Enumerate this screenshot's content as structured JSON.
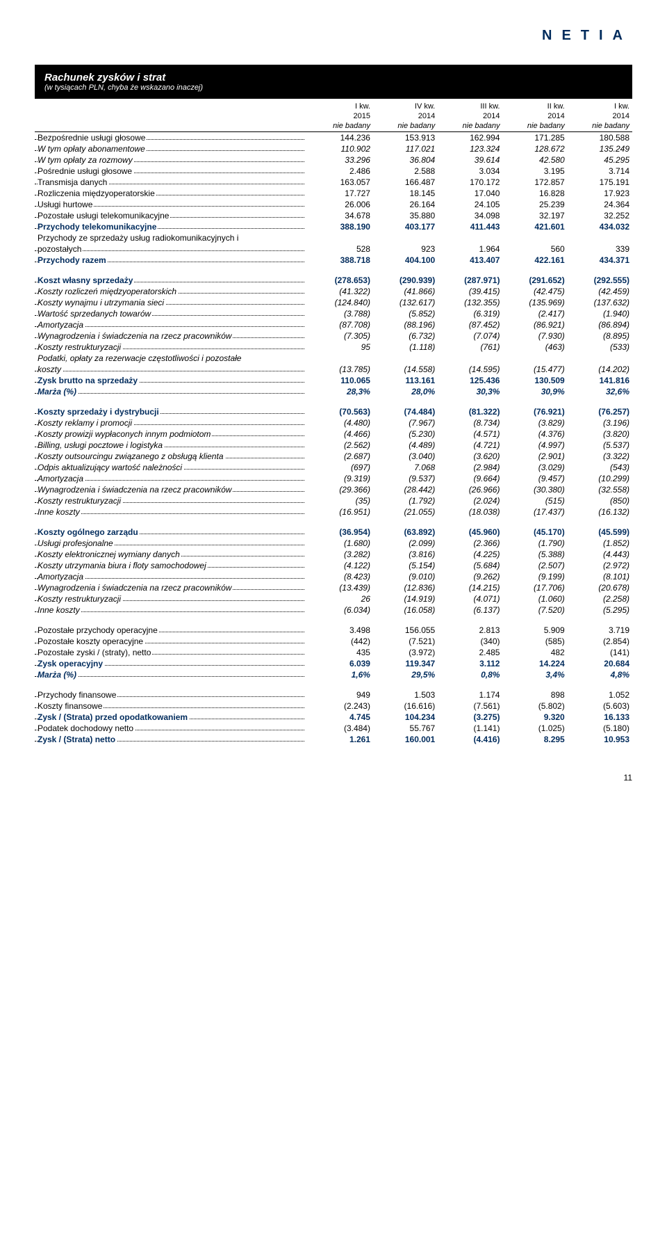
{
  "brand": "NETIA",
  "title": "Rachunek zysków i strat",
  "subtitle": "(w tysiącach PLN, chyba że wskazano inaczej)",
  "columns_l1": [
    "I kw.",
    "IV kw.",
    "III kw.",
    "II kw.",
    "I kw."
  ],
  "columns_l2": [
    "2015",
    "2014",
    "2014",
    "2014",
    "2014"
  ],
  "columns_l3": [
    "nie badany",
    "nie badany",
    "nie badany",
    "nie badany",
    "nie badany"
  ],
  "page_number": "11",
  "rows": [
    {
      "lbl": "Bezpośrednie usługi głosowe",
      "v": [
        "144.236",
        "153.913",
        "162.994",
        "171.285",
        "180.588"
      ],
      "cls": "normal",
      "dots": true
    },
    {
      "lbl": "  W tym opłaty abonamentowe",
      "v": [
        "110.902",
        "117.021",
        "123.324",
        "128.672",
        "135.249"
      ],
      "cls": "ital",
      "dots": true
    },
    {
      "lbl": "  W tym opłaty za rozmowy",
      "v": [
        "33.296",
        "36.804",
        "39.614",
        "42.580",
        "45.295"
      ],
      "cls": "ital",
      "dots": true
    },
    {
      "lbl": "Pośrednie usługi głosowe",
      "v": [
        "2.486",
        "2.588",
        "3.034",
        "3.195",
        "3.714"
      ],
      "cls": "normal",
      "dots": true
    },
    {
      "lbl": "Transmisja danych",
      "v": [
        "163.057",
        "166.487",
        "170.172",
        "172.857",
        "175.191"
      ],
      "cls": "normal",
      "dots": true
    },
    {
      "lbl": "Rozliczenia międzyoperatorskie",
      "v": [
        "17.727",
        "18.145",
        "17.040",
        "16.828",
        "17.923"
      ],
      "cls": "normal",
      "dots": true
    },
    {
      "lbl": "Usługi hurtowe",
      "v": [
        "26.006",
        "26.164",
        "24.105",
        "25.239",
        "24.364"
      ],
      "cls": "normal",
      "dots": true
    },
    {
      "lbl": "Pozostałe usługi telekomunikacyjne",
      "v": [
        "34.678",
        "35.880",
        "34.098",
        "32.197",
        "32.252"
      ],
      "cls": "normal",
      "dots": true
    },
    {
      "lbl": "Przychody telekomunikacyjne",
      "v": [
        "388.190",
        "403.177",
        "411.443",
        "421.601",
        "434.032"
      ],
      "cls": "boldblue",
      "dots": true
    },
    {
      "lbl": "Przychody ze sprzedaży usług radiokomunikacyjnych i",
      "v": [
        "",
        "",
        "",
        "",
        ""
      ],
      "cls": "normal",
      "dots": false
    },
    {
      "lbl": "pozostałych",
      "v": [
        "528",
        "923",
        "1.964",
        "560",
        "339"
      ],
      "cls": "normal",
      "dots": true
    },
    {
      "lbl": "Przychody razem",
      "v": [
        "388.718",
        "404.100",
        "413.407",
        "422.161",
        "434.371"
      ],
      "cls": "boldblue",
      "dots": true
    },
    {
      "lbl": "Koszt własny sprzedaży",
      "v": [
        "(278.653)",
        "(290.939)",
        "(287.971)",
        "(291.652)",
        "(292.555)"
      ],
      "cls": "boldblue",
      "dots": true,
      "gap": true
    },
    {
      "lbl": "Koszty rozliczeń międzyoperatorskich",
      "v": [
        "(41.322)",
        "(41.866)",
        "(39.415)",
        "(42.475)",
        "(42.459)"
      ],
      "cls": "ital",
      "dots": true
    },
    {
      "lbl": "Koszty wynajmu i utrzymania sieci",
      "v": [
        "(124.840)",
        "(132.617)",
        "(132.355)",
        "(135.969)",
        "(137.632)"
      ],
      "cls": "ital",
      "dots": true
    },
    {
      "lbl": "Wartość sprzedanych towarów",
      "v": [
        "(3.788)",
        "(5.852)",
        "(6.319)",
        "(2.417)",
        "(1.940)"
      ],
      "cls": "ital",
      "dots": true
    },
    {
      "lbl": "Amortyzacja",
      "v": [
        "(87.708)",
        "(88.196)",
        "(87.452)",
        "(86.921)",
        "(86.894)"
      ],
      "cls": "ital",
      "dots": true
    },
    {
      "lbl": "Wynagrodzenia i świadczenia na rzecz pracowników",
      "v": [
        "(7.305)",
        "(6.732)",
        "(7.074)",
        "(7.930)",
        "(8.895)"
      ],
      "cls": "ital",
      "dots": true
    },
    {
      "lbl": "Koszty restrukturyzacji",
      "v": [
        "95",
        "(1.118)",
        "(761)",
        "(463)",
        "(533)"
      ],
      "cls": "ital",
      "dots": true
    },
    {
      "lbl": "Podatki, opłaty za rezerwacje częstotliwości i pozostałe",
      "v": [
        "",
        "",
        "",
        "",
        ""
      ],
      "cls": "ital",
      "dots": false
    },
    {
      "lbl": "koszty",
      "v": [
        "(13.785)",
        "(14.558)",
        "(14.595)",
        "(15.477)",
        "(14.202)"
      ],
      "cls": "ital",
      "dots": true
    },
    {
      "lbl": "Zysk brutto na sprzedaży",
      "v": [
        "110.065",
        "113.161",
        "125.436",
        "130.509",
        "141.816"
      ],
      "cls": "boldblue",
      "dots": true
    },
    {
      "lbl": "Marża (%)",
      "v": [
        "28,3%",
        "28,0%",
        "30,3%",
        "30,9%",
        "32,6%"
      ],
      "cls": "boldblueital",
      "dots": true
    },
    {
      "lbl": "Koszty sprzedaży i dystrybucji",
      "v": [
        "(70.563)",
        "(74.484)",
        "(81.322)",
        "(76.921)",
        "(76.257)"
      ],
      "cls": "boldblue",
      "dots": true,
      "gap": true
    },
    {
      "lbl": "Koszty reklamy i promocji",
      "v": [
        "(4.480)",
        "(7.967)",
        "(8.734)",
        "(3.829)",
        "(3.196)"
      ],
      "cls": "ital",
      "dots": true
    },
    {
      "lbl": "Koszty prowizji wypłaconych innym podmiotom",
      "v": [
        "(4.466)",
        "(5.230)",
        "(4.571)",
        "(4.376)",
        "(3.820)"
      ],
      "cls": "ital",
      "dots": true
    },
    {
      "lbl": "Billing, usługi pocztowe i logistyka",
      "v": [
        "(2.562)",
        "(4.489)",
        "(4.721)",
        "(4.997)",
        "(5.537)"
      ],
      "cls": "ital",
      "dots": true
    },
    {
      "lbl": "Koszty outsourcingu związanego z obsługą klienta",
      "v": [
        "(2.687)",
        "(3.040)",
        "(3.620)",
        "(2.901)",
        "(3.322)"
      ],
      "cls": "ital",
      "dots": true
    },
    {
      "lbl": "Odpis aktualizujący wartość należności",
      "v": [
        "(697)",
        "7.068",
        "(2.984)",
        "(3.029)",
        "(543)"
      ],
      "cls": "ital",
      "dots": true
    },
    {
      "lbl": "Amortyzacja",
      "v": [
        "(9.319)",
        "(9.537)",
        "(9.664)",
        "(9.457)",
        "(10.299)"
      ],
      "cls": "ital",
      "dots": true
    },
    {
      "lbl": "Wynagrodzenia i świadczenia na rzecz pracowników",
      "v": [
        "(29.366)",
        "(28.442)",
        "(26.966)",
        "(30.380)",
        "(32.558)"
      ],
      "cls": "ital",
      "dots": true
    },
    {
      "lbl": "Koszty restrukturyzacji",
      "v": [
        "(35)",
        "(1.792)",
        "(2.024)",
        "(515)",
        "(850)"
      ],
      "cls": "ital",
      "dots": true
    },
    {
      "lbl": "Inne koszty",
      "v": [
        "(16.951)",
        "(21.055)",
        "(18.038)",
        "(17.437)",
        "(16.132)"
      ],
      "cls": "ital",
      "dots": true
    },
    {
      "lbl": "Koszty ogólnego zarządu",
      "v": [
        "(36.954)",
        "(63.892)",
        "(45.960)",
        "(45.170)",
        "(45.599)"
      ],
      "cls": "boldblue",
      "dots": true,
      "gap": true
    },
    {
      "lbl": "Usługi profesjonalne",
      "v": [
        "(1.680)",
        "(2.099)",
        "(2.366)",
        "(1.790)",
        "(1.852)"
      ],
      "cls": "ital",
      "dots": true
    },
    {
      "lbl": "Koszty elektronicznej wymiany danych",
      "v": [
        "(3.282)",
        "(3.816)",
        "(4.225)",
        "(5.388)",
        "(4.443)"
      ],
      "cls": "ital",
      "dots": true
    },
    {
      "lbl": "Koszty utrzymania biura i floty samochodowej",
      "v": [
        "(4.122)",
        "(5.154)",
        "(5.684)",
        "(2.507)",
        "(2.972)"
      ],
      "cls": "ital",
      "dots": true
    },
    {
      "lbl": "Amortyzacja",
      "v": [
        "(8.423)",
        "(9.010)",
        "(9.262)",
        "(9.199)",
        "(8.101)"
      ],
      "cls": "ital",
      "dots": true
    },
    {
      "lbl": "Wynagrodzenia i świadczenia na rzecz pracowników",
      "v": [
        "(13.439)",
        "(12.836)",
        "(14.215)",
        "(17.706)",
        "(20.678)"
      ],
      "cls": "ital",
      "dots": true
    },
    {
      "lbl": "Koszty restrukturyzacji",
      "v": [
        "26",
        "(14.919)",
        "(4.071)",
        "(1.060)",
        "(2.258)"
      ],
      "cls": "ital",
      "dots": true
    },
    {
      "lbl": "Inne koszty",
      "v": [
        "(6.034)",
        "(16.058)",
        "(6.137)",
        "(7.520)",
        "(5.295)"
      ],
      "cls": "ital",
      "dots": true
    },
    {
      "lbl": "Pozostałe przychody operacyjne",
      "v": [
        "3.498",
        "156.055",
        "2.813",
        "5.909",
        "3.719"
      ],
      "cls": "normal",
      "dots": true,
      "gap": true
    },
    {
      "lbl": "Pozostałe koszty operacyjne",
      "v": [
        "(442)",
        "(7.521)",
        "(340)",
        "(585)",
        "(2.854)"
      ],
      "cls": "normal",
      "dots": true
    },
    {
      "lbl": "Pozostałe zyski / (straty), netto",
      "v": [
        "435",
        "(3.972)",
        "2.485",
        "482",
        "(141)"
      ],
      "cls": "normal",
      "dots": true
    },
    {
      "lbl": "Zysk operacyjny",
      "v": [
        "6.039",
        "119.347",
        "3.112",
        "14.224",
        "20.684"
      ],
      "cls": "boldblue",
      "dots": true
    },
    {
      "lbl": "Marża (%)",
      "v": [
        "1,6%",
        "29,5%",
        "0,8%",
        "3,4%",
        "4,8%"
      ],
      "cls": "boldblueital",
      "dots": true
    },
    {
      "lbl": "Przychody finansowe",
      "v": [
        "949",
        "1.503",
        "1.174",
        "898",
        "1.052"
      ],
      "cls": "normal",
      "dots": true,
      "gap": true
    },
    {
      "lbl": "Koszty finansowe",
      "v": [
        "(2.243)",
        "(16.616)",
        "(7.561)",
        "(5.802)",
        "(5.603)"
      ],
      "cls": "normal",
      "dots": true
    },
    {
      "lbl": "Zysk / (Strata) przed opodatkowaniem",
      "v": [
        "4.745",
        "104.234",
        "(3.275)",
        "9.320",
        "16.133"
      ],
      "cls": "boldblue",
      "dots": true
    },
    {
      "lbl": "Podatek dochodowy netto",
      "v": [
        "(3.484)",
        "55.767",
        "(1.141)",
        "(1.025)",
        "(5.180)"
      ],
      "cls": "normal",
      "dots": true
    },
    {
      "lbl": "Zysk / (Strata) netto",
      "v": [
        "1.261",
        "160.001",
        "(4.416)",
        "8.295",
        "10.953"
      ],
      "cls": "boldblue",
      "dots": true
    }
  ]
}
